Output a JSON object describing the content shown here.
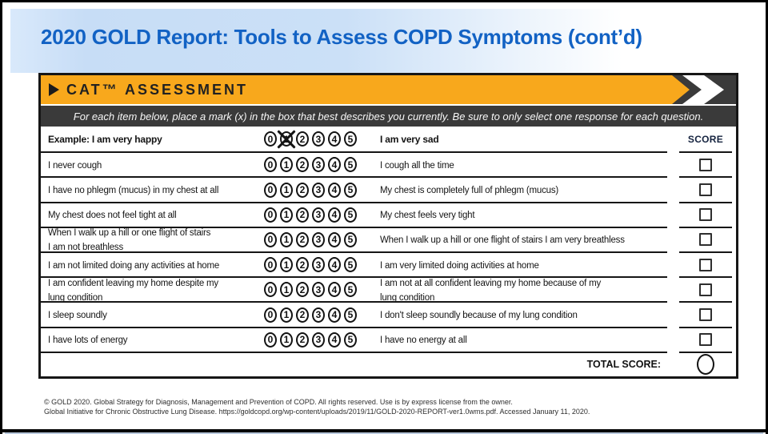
{
  "slide": {
    "title": "2020 GOLD Report: Tools to Assess COPD Symptoms (cont’d)",
    "footnote_line1": "© GOLD 2020. Global Strategy for Diagnosis, Management and Prevention of COPD. All rights reserved. Use is by express license from the owner.",
    "footnote_line2": "Global Initiative for Chronic Obstructive Lung Disease. https://goldcopd.org/wp-content/uploads/2019/11/GOLD-2020-REPORT-ver1.0wms.pdf. Accessed January 11, 2020."
  },
  "assessment": {
    "banner_title": "CAT™ ASSESSMENT",
    "instruction": "For each item below, place a mark (x) in the box that best describes you currently. Be sure to only select one response for each question.",
    "score_header": "SCORE",
    "total_label": "TOTAL SCORE:",
    "scale": [
      "0",
      "1",
      "2",
      "3",
      "4",
      "5"
    ],
    "example": {
      "left": "Example: I am very happy",
      "right": "I am very sad",
      "marked": "1"
    },
    "items": [
      {
        "left": "I never cough",
        "right": "I cough all the time"
      },
      {
        "left": "I have no phlegm (mucus) in my chest at all",
        "right": "My chest is completely full of phlegm (mucus)"
      },
      {
        "left": "My chest does not feel tight at all",
        "right": "My chest feels very tight"
      },
      {
        "left": "When I walk up a hill or one flight of stairs\nI am not breathless",
        "right": "When I walk up a hill or one flight of stairs I am very breathless"
      },
      {
        "left": "I am not limited doing any activities at home",
        "right": "I am very limited doing activities at home"
      },
      {
        "left": "I am confident leaving my home despite my\nlung condition",
        "right": "I am not at all confident leaving my home because of my\nlung condition"
      },
      {
        "left": "I sleep soundly",
        "right": "I don't sleep soundly because of my lung condition"
      },
      {
        "left": "I have lots of energy",
        "right": "I have no energy at all"
      }
    ]
  },
  "colors": {
    "banner_orange": "#F8A81C",
    "dark_bar": "#3A3A3A",
    "title_blue": "#1262C4",
    "header_band_blue": "#C7DDF6",
    "line_black": "#161616"
  }
}
